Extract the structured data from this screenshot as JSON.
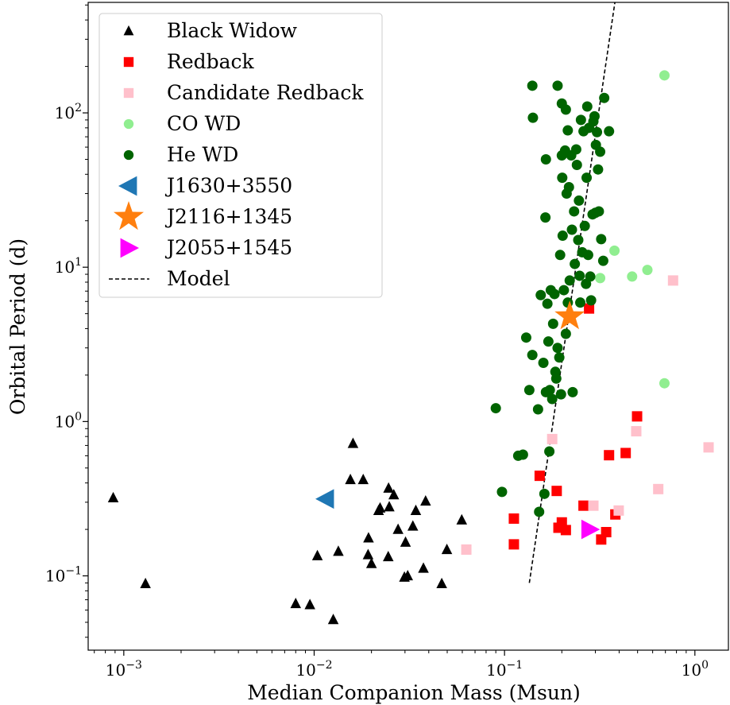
{
  "chart_data": {
    "type": "scatter",
    "xlabel": "Median Companion Mass (Msun)",
    "ylabel": "Orbital Period (d)",
    "xscale": "log",
    "yscale": "log",
    "xlim": [
      0.00065,
      1.5
    ],
    "ylim": [
      0.033,
      520
    ],
    "grid": false,
    "legend_position": "top-left",
    "x_ticks": [
      {
        "value": 0.001,
        "base": "10",
        "exp": "−3"
      },
      {
        "value": 0.01,
        "base": "10",
        "exp": "−2"
      },
      {
        "value": 0.1,
        "base": "10",
        "exp": "−1"
      },
      {
        "value": 1,
        "base": "10",
        "exp": "0"
      }
    ],
    "y_ticks": [
      {
        "value": 0.1,
        "base": "10",
        "exp": "−1"
      },
      {
        "value": 1,
        "base": "10",
        "exp": "0"
      },
      {
        "value": 10,
        "base": "10",
        "exp": "1"
      },
      {
        "value": 100,
        "base": "10",
        "exp": "2"
      }
    ],
    "series": [
      {
        "name": "Black Widow",
        "marker": "triangle-up",
        "color": "#000000",
        "points": [
          [
            0.00088,
            0.32
          ],
          [
            0.0013,
            0.089
          ],
          [
            0.008,
            0.066
          ],
          [
            0.0095,
            0.065
          ],
          [
            0.0104,
            0.135
          ],
          [
            0.0126,
            0.052
          ],
          [
            0.0134,
            0.144
          ],
          [
            0.0155,
            0.42
          ],
          [
            0.016,
            0.72
          ],
          [
            0.0181,
            0.42
          ],
          [
            0.0192,
            0.137
          ],
          [
            0.0193,
            0.176
          ],
          [
            0.02,
            0.12
          ],
          [
            0.0218,
            0.265
          ],
          [
            0.0222,
            0.275
          ],
          [
            0.0245,
            0.133
          ],
          [
            0.0246,
            0.37
          ],
          [
            0.0248,
            0.28
          ],
          [
            0.0262,
            0.335
          ],
          [
            0.0276,
            0.2
          ],
          [
            0.0298,
            0.098
          ],
          [
            0.0302,
            0.165
          ],
          [
            0.031,
            0.1
          ],
          [
            0.033,
            0.21
          ],
          [
            0.0342,
            0.265
          ],
          [
            0.0375,
            0.112
          ],
          [
            0.0385,
            0.305
          ],
          [
            0.0468,
            0.089
          ],
          [
            0.0498,
            0.148
          ],
          [
            0.0596,
            0.23
          ]
        ]
      },
      {
        "name": "Redback",
        "marker": "square",
        "color": "#ff0000",
        "points": [
          [
            0.112,
            0.16
          ],
          [
            0.112,
            0.235
          ],
          [
            0.153,
            0.445
          ],
          [
            0.188,
            0.355
          ],
          [
            0.192,
            0.205
          ],
          [
            0.2,
            0.222
          ],
          [
            0.21,
            0.198
          ],
          [
            0.26,
            0.285
          ],
          [
            0.278,
            5.4
          ],
          [
            0.322,
            0.172
          ],
          [
            0.342,
            0.192
          ],
          [
            0.354,
            0.605
          ],
          [
            0.382,
            0.25
          ],
          [
            0.433,
            0.625
          ],
          [
            0.497,
            1.08
          ]
        ]
      },
      {
        "name": "Candidate Redback",
        "marker": "square",
        "color": "#ffc0cb",
        "points": [
          [
            0.063,
            0.148
          ],
          [
            0.178,
            0.77
          ],
          [
            0.293,
            0.285
          ],
          [
            0.398,
            0.265
          ],
          [
            0.492,
            0.865
          ],
          [
            0.642,
            0.365
          ],
          [
            0.768,
            8.2
          ],
          [
            1.18,
            0.68
          ]
        ]
      },
      {
        "name": "CO WD",
        "marker": "circle",
        "color": "#90ee90",
        "points": [
          [
            0.318,
            8.5
          ],
          [
            0.378,
            12.8
          ],
          [
            0.468,
            8.7
          ],
          [
            0.563,
            9.6
          ],
          [
            0.692,
            1.77
          ],
          [
            0.692,
            175
          ]
        ]
      },
      {
        "name": "He WD",
        "marker": "circle",
        "color": "#006400",
        "points": [
          [
            0.09,
            1.22
          ],
          [
            0.097,
            0.35
          ],
          [
            0.118,
            0.6
          ],
          [
            0.125,
            0.61
          ],
          [
            0.13,
            3.5
          ],
          [
            0.135,
            1.6
          ],
          [
            0.14,
            150
          ],
          [
            0.14,
            2.7
          ],
          [
            0.141,
            93
          ],
          [
            0.15,
            1.2
          ],
          [
            0.152,
            0.26
          ],
          [
            0.155,
            6.6
          ],
          [
            0.16,
            2.4
          ],
          [
            0.162,
            0.34
          ],
          [
            0.164,
            21
          ],
          [
            0.165,
            1.55
          ],
          [
            0.165,
            50
          ],
          [
            0.168,
            5.8
          ],
          [
            0.17,
            3.3
          ],
          [
            0.172,
            0.64
          ],
          [
            0.173,
            1.6
          ],
          [
            0.175,
            7.1
          ],
          [
            0.178,
            1.4
          ],
          [
            0.18,
            4.3
          ],
          [
            0.183,
            6.7
          ],
          [
            0.185,
            2.1
          ],
          [
            0.187,
            1.9
          ],
          [
            0.19,
            150
          ],
          [
            0.19,
            3.0
          ],
          [
            0.194,
            2.6
          ],
          [
            0.196,
            12
          ],
          [
            0.198,
            1.5
          ],
          [
            0.2,
            53
          ],
          [
            0.2,
            115
          ],
          [
            0.201,
            38
          ],
          [
            0.202,
            16
          ],
          [
            0.205,
            7.1
          ],
          [
            0.208,
            57
          ],
          [
            0.21,
            105
          ],
          [
            0.21,
            3.7
          ],
          [
            0.212,
            30
          ],
          [
            0.215,
            77
          ],
          [
            0.215,
            5.9
          ],
          [
            0.218,
            33
          ],
          [
            0.22,
            8.2
          ],
          [
            0.224,
            53
          ],
          [
            0.226,
            17.5
          ],
          [
            0.228,
            1.55
          ],
          [
            0.232,
            23
          ],
          [
            0.234,
            10.5
          ],
          [
            0.238,
            58
          ],
          [
            0.24,
            46
          ],
          [
            0.244,
            15
          ],
          [
            0.246,
            27
          ],
          [
            0.248,
            8.8
          ],
          [
            0.25,
            5.9
          ],
          [
            0.252,
            90
          ],
          [
            0.256,
            12.5
          ],
          [
            0.26,
            76
          ],
          [
            0.264,
            18.5
          ],
          [
            0.268,
            7.8
          ],
          [
            0.27,
            38
          ],
          [
            0.272,
            110
          ],
          [
            0.275,
            12
          ],
          [
            0.278,
            80
          ],
          [
            0.282,
            8.7
          ],
          [
            0.285,
            6.1
          ],
          [
            0.29,
            22
          ],
          [
            0.293,
            88
          ],
          [
            0.297,
            95
          ],
          [
            0.3,
            22.5
          ],
          [
            0.302,
            62
          ],
          [
            0.306,
            75
          ],
          [
            0.31,
            43
          ],
          [
            0.313,
            23
          ],
          [
            0.318,
            56
          ],
          [
            0.322,
            15.2
          ],
          [
            0.33,
            11
          ],
          [
            0.334,
            125
          ],
          [
            0.354,
            76
          ]
        ]
      },
      {
        "name": "J1630+3550",
        "marker": "triangle-left",
        "color": "#1f77b4",
        "points": [
          [
            0.0115,
            0.315
          ]
        ]
      },
      {
        "name": "J2116+1345",
        "marker": "star",
        "color": "#ff7f0e",
        "points": [
          [
            0.22,
            4.8
          ]
        ]
      },
      {
        "name": "J2055+1545",
        "marker": "triangle-right",
        "color": "#ff00ff",
        "points": [
          [
            0.28,
            0.2
          ]
        ]
      }
    ],
    "model": {
      "name": "Model",
      "style": "dashed",
      "color": "#000000",
      "x": [
        0.135,
        0.38
      ],
      "y": [
        0.09,
        520
      ]
    }
  }
}
